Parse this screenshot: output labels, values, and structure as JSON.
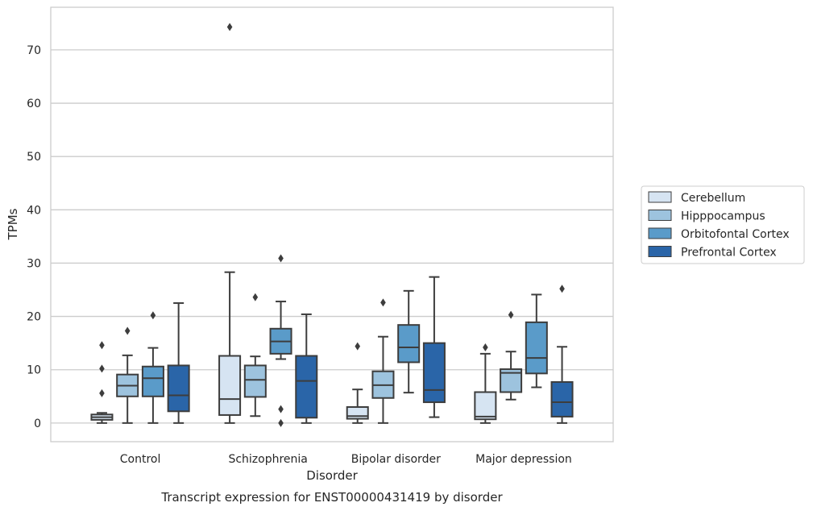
{
  "chart_data": {
    "type": "box",
    "title": "Transcript expression for ENST00000431419 by disorder",
    "xlabel": "Disorder",
    "ylabel": "TPMs",
    "categories": [
      "Control",
      "Schizophrenia",
      "Bipolar disorder",
      "Major depression"
    ],
    "ylim": [
      -3.5,
      78
    ],
    "yticks": [
      0,
      10,
      20,
      30,
      40,
      50,
      60,
      70
    ],
    "grid": "horizontal",
    "legend_position": "right",
    "series": [
      {
        "name": "Cerebellum",
        "color": "#d6e4f2",
        "boxes": [
          {
            "whislo": 0,
            "q1": 0.6,
            "med": 1.1,
            "q3": 1.6,
            "whishi": 1.9,
            "fliers": [
              5.6,
              10.2,
              14.6
            ]
          },
          {
            "whislo": 0,
            "q1": 1.5,
            "med": 4.5,
            "q3": 12.6,
            "whishi": 28.3,
            "fliers": [
              74.3
            ]
          },
          {
            "whislo": 0,
            "q1": 0.8,
            "med": 1.3,
            "q3": 3.0,
            "whishi": 6.3,
            "fliers": [
              14.4
            ]
          },
          {
            "whislo": 0,
            "q1": 0.7,
            "med": 1.2,
            "q3": 5.8,
            "whishi": 13.0,
            "fliers": [
              14.2
            ]
          }
        ]
      },
      {
        "name": "Hipppocampus",
        "color": "#9dc3de",
        "boxes": [
          {
            "whislo": 0,
            "q1": 5.0,
            "med": 7.0,
            "q3": 9.1,
            "whishi": 12.7,
            "fliers": [
              17.3
            ]
          },
          {
            "whislo": 1.3,
            "q1": 4.9,
            "med": 8.1,
            "q3": 10.8,
            "whishi": 12.5,
            "fliers": [
              23.6
            ]
          },
          {
            "whislo": 0,
            "q1": 4.7,
            "med": 7.1,
            "q3": 9.7,
            "whishi": 16.2,
            "fliers": [
              22.6
            ]
          },
          {
            "whislo": 4.4,
            "q1": 5.8,
            "med": 9.4,
            "q3": 10.1,
            "whishi": 13.4,
            "fliers": [
              20.3
            ]
          }
        ]
      },
      {
        "name": "Orbitofontal Cortex",
        "color": "#5a9bc9",
        "boxes": [
          {
            "whislo": 0,
            "q1": 5.0,
            "med": 8.4,
            "q3": 10.6,
            "whishi": 14.1,
            "fliers": [
              20.2
            ]
          },
          {
            "whislo": 12.0,
            "q1": 13.0,
            "med": 15.3,
            "q3": 17.7,
            "whishi": 22.8,
            "fliers": [
              30.9,
              2.6,
              0
            ]
          },
          {
            "whislo": 5.7,
            "q1": 11.4,
            "med": 14.2,
            "q3": 18.4,
            "whishi": 24.8,
            "fliers": []
          },
          {
            "whislo": 6.7,
            "q1": 9.3,
            "med": 12.2,
            "q3": 18.9,
            "whishi": 24.1,
            "fliers": []
          }
        ]
      },
      {
        "name": "Prefrontal Cortex",
        "color": "#2a65a8",
        "boxes": [
          {
            "whislo": 0,
            "q1": 2.2,
            "med": 5.2,
            "q3": 10.8,
            "whishi": 22.5,
            "fliers": []
          },
          {
            "whislo": 0,
            "q1": 1.0,
            "med": 7.9,
            "q3": 12.6,
            "whishi": 20.4,
            "fliers": []
          },
          {
            "whislo": 1.1,
            "q1": 3.9,
            "med": 6.2,
            "q3": 15.0,
            "whishi": 27.4,
            "fliers": []
          },
          {
            "whislo": 0,
            "q1": 1.2,
            "med": 3.9,
            "q3": 7.7,
            "whishi": 14.3,
            "fliers": [
              25.2
            ]
          }
        ]
      }
    ]
  }
}
